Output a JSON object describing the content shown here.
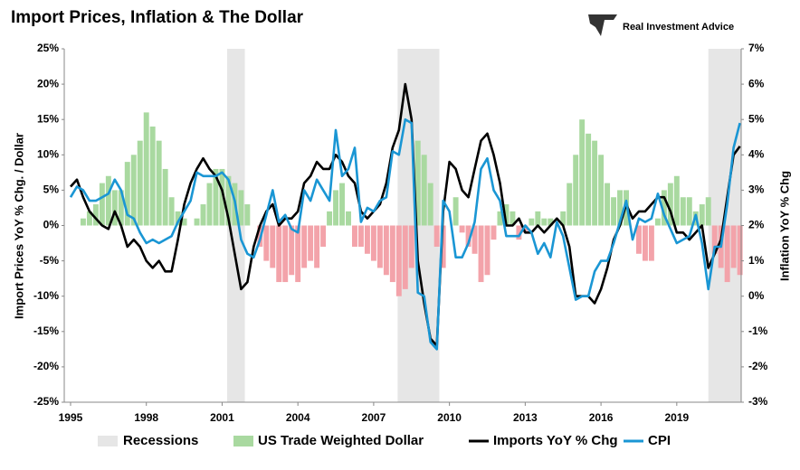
{
  "chart_data": {
    "type": "combo",
    "title": "Import Prices, Inflation & The Dollar",
    "brand": "Real Investment Advice",
    "y_label": "Import Prices YoY % Chg. / Dollar",
    "y2_label": "Inflation YoY % Chg",
    "x": [
      1995,
      1995.25,
      1995.5,
      1995.75,
      1996,
      1996.25,
      1996.5,
      1996.75,
      1997,
      1997.25,
      1997.5,
      1997.75,
      1998,
      1998.25,
      1998.5,
      1998.75,
      1999,
      1999.25,
      1999.5,
      1999.75,
      2000,
      2000.25,
      2000.5,
      2000.75,
      2001,
      2001.25,
      2001.5,
      2001.75,
      2002,
      2002.25,
      2002.5,
      2002.75,
      2003,
      2003.25,
      2003.5,
      2003.75,
      2004,
      2004.25,
      2004.5,
      2004.75,
      2005,
      2005.25,
      2005.5,
      2005.75,
      2006,
      2006.25,
      2006.5,
      2006.75,
      2007,
      2007.25,
      2007.5,
      2007.75,
      2008,
      2008.25,
      2008.5,
      2008.75,
      2009,
      2009.25,
      2009.5,
      2009.75,
      2010,
      2010.25,
      2010.5,
      2010.75,
      2011,
      2011.25,
      2011.5,
      2011.75,
      2012,
      2012.25,
      2012.5,
      2012.75,
      2013,
      2013.25,
      2013.5,
      2013.75,
      2014,
      2014.25,
      2014.5,
      2014.75,
      2015,
      2015.25,
      2015.5,
      2015.75,
      2016,
      2016.25,
      2016.5,
      2016.75,
      2017,
      2017.25,
      2017.5,
      2017.75,
      2018,
      2018.25,
      2018.5,
      2018.75,
      2019,
      2019.25,
      2019.5,
      2019.75,
      2020,
      2020.25,
      2020.5,
      2020.75,
      2021,
      2021.25,
      2021.5
    ],
    "recessions": {
      "name": "Recessions",
      "color": "#e6e6e6",
      "ranges": [
        [
          2001.2,
          2001.9
        ],
        [
          2007.95,
          2009.6
        ],
        [
          2020.25,
          2021.55
        ]
      ]
    },
    "series": [
      {
        "name": "US Trade Weighted Dollar",
        "kind": "bar",
        "color": "#a9d9a0",
        "negative_color": "#f3a3aa",
        "values": [
          0,
          0,
          1,
          2,
          3,
          6,
          7,
          5,
          5,
          9,
          10,
          12,
          16,
          14,
          12,
          8,
          4,
          2,
          1,
          0,
          1,
          3,
          6,
          8,
          8,
          7,
          6,
          5,
          3,
          0,
          -3,
          -5,
          -6,
          -8,
          -8,
          -7,
          -8,
          -6,
          -5,
          -6,
          -3,
          2,
          5,
          6,
          2,
          -3,
          -3,
          -4,
          -5,
          -6,
          -7,
          -8,
          -10,
          -9,
          -6,
          12,
          10,
          6,
          -3,
          -6,
          0,
          4,
          -1,
          -3,
          -4,
          -8,
          -7,
          -2,
          2,
          3,
          2,
          -2,
          -1,
          1,
          2,
          1,
          1,
          0,
          2,
          6,
          10,
          15,
          13,
          12,
          10,
          6,
          4,
          5,
          5,
          0,
          -4,
          -5,
          -5,
          1,
          5,
          6,
          7,
          4,
          4,
          2,
          3,
          4,
          -4,
          -6,
          -8,
          -6,
          -7
        ]
      },
      {
        "name": "Imports YoY % Chg",
        "kind": "line",
        "color": "#000000",
        "values": [
          5.5,
          6.5,
          4,
          2,
          1,
          0,
          -0.5,
          2,
          0,
          -3,
          -2,
          -3,
          -5,
          -6,
          -5,
          -6.5,
          -6.5,
          -2,
          3,
          6,
          8,
          9.5,
          8,
          7,
          5,
          1,
          -4,
          -9,
          -8,
          -3,
          0,
          2,
          3,
          0,
          1,
          1,
          2,
          6,
          7,
          9,
          8,
          8,
          10,
          9,
          7,
          6,
          2,
          1,
          2,
          3,
          6,
          11,
          13.5,
          20,
          15,
          -5,
          -11,
          -16,
          -17,
          2,
          9,
          8,
          5,
          4,
          8,
          12,
          13,
          10,
          6,
          0,
          0,
          1,
          -1,
          -1,
          0,
          -1,
          0,
          1,
          0,
          -3,
          -10,
          -10,
          -10,
          -11,
          -9,
          -6,
          -2,
          0,
          3,
          1,
          2,
          2,
          3,
          4,
          4,
          2,
          -1,
          -1,
          -2,
          -1,
          0,
          -6,
          -4,
          -2,
          4,
          10,
          11.2
        ]
      },
      {
        "name": "CPI",
        "kind": "line",
        "axis": "y2",
        "color": "#1a96d4",
        "values": [
          2.8,
          3.1,
          3.0,
          2.7,
          2.7,
          2.8,
          2.9,
          3.3,
          3.0,
          2.3,
          2.2,
          1.8,
          1.5,
          1.6,
          1.5,
          1.6,
          1.7,
          2.1,
          2.4,
          2.7,
          3.5,
          3.4,
          3.4,
          3.4,
          3.5,
          3.3,
          2.7,
          1.6,
          1.2,
          1.1,
          1.6,
          2.3,
          3.0,
          2.1,
          2.3,
          1.9,
          1.8,
          3.0,
          2.7,
          3.3,
          3.0,
          2.7,
          4.7,
          3.4,
          3.6,
          4.2,
          2.1,
          2.5,
          2.4,
          2.7,
          2.8,
          4.1,
          4.0,
          5.0,
          4.9,
          0.1,
          0,
          -1.3,
          -1.5,
          2.7,
          2.4,
          1.1,
          1.1,
          1.5,
          2.1,
          3.6,
          3.9,
          3.0,
          2.7,
          1.7,
          1.7,
          1.7,
          2.0,
          1.8,
          1.2,
          1.5,
          1.1,
          2.1,
          1.7,
          0.8,
          -0.1,
          0.0,
          0.0,
          0.7,
          1.0,
          1.0,
          1.5,
          2.1,
          2.7,
          1.6,
          2.2,
          2.1,
          2.2,
          2.9,
          2.3,
          1.9,
          1.5,
          1.6,
          1.7,
          2.3,
          1.5,
          0.2,
          1.4,
          1.4,
          2.6,
          4.2,
          4.9
        ]
      }
    ],
    "xlim": [
      1994.75,
      2021.55
    ],
    "xticks": [
      1995,
      1998,
      2001,
      2004,
      2007,
      2010,
      2013,
      2016,
      2019
    ],
    "ylim": [
      -25,
      25
    ],
    "yticks": [
      {
        "value": -25,
        "label": "-25%"
      },
      {
        "value": -20,
        "label": "-20%"
      },
      {
        "value": -15,
        "label": "-15%"
      },
      {
        "value": -10,
        "label": "-10%"
      },
      {
        "value": -5,
        "label": "-5%"
      },
      {
        "value": 0,
        "label": "0%"
      },
      {
        "value": 5,
        "label": "5%"
      },
      {
        "value": 10,
        "label": "10%"
      },
      {
        "value": 15,
        "label": "15%"
      },
      {
        "value": 20,
        "label": "20%"
      },
      {
        "value": 25,
        "label": "25%"
      }
    ],
    "y2lim": [
      -3,
      7
    ],
    "y2ticks": [
      {
        "value": -3,
        "label": "-3%"
      },
      {
        "value": -2,
        "label": "-2%"
      },
      {
        "value": -1,
        "label": "-1%"
      },
      {
        "value": 0,
        "label": "0%"
      },
      {
        "value": 1,
        "label": "1%"
      },
      {
        "value": 2,
        "label": "2%"
      },
      {
        "value": 3,
        "label": "3%"
      },
      {
        "value": 4,
        "label": "4%"
      },
      {
        "value": 5,
        "label": "5%"
      },
      {
        "value": 6,
        "label": "6%"
      },
      {
        "value": 7,
        "label": "7%"
      }
    ]
  }
}
